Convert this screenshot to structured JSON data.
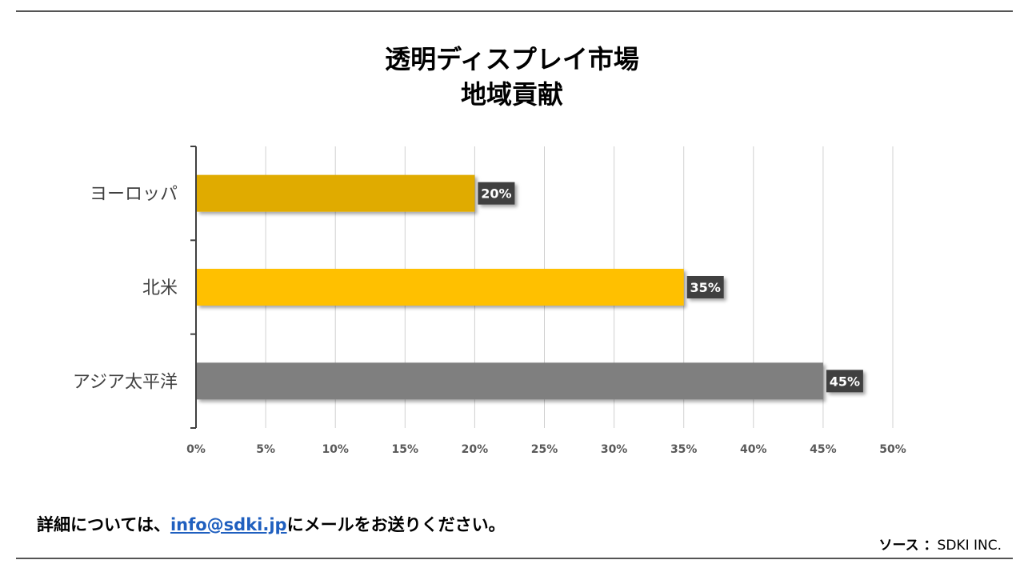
{
  "chart_data": {
    "type": "bar",
    "orientation": "horizontal",
    "title_line1": "透明ディスプレイ市場",
    "title_line2": "地域貢献",
    "categories": [
      "ヨーロッパ",
      "北米",
      "アジア太平洋"
    ],
    "values": [
      20,
      35,
      45
    ],
    "value_labels": [
      "20%",
      "35%",
      "45%"
    ],
    "colors": [
      "#e0ab00",
      "#ffc000",
      "#7f7f7f"
    ],
    "xlim": [
      0,
      50
    ],
    "xticks": [
      0,
      5,
      10,
      15,
      20,
      25,
      30,
      35,
      40,
      45,
      50
    ],
    "xtick_labels": [
      "0%",
      "5%",
      "10%",
      "15%",
      "20%",
      "25%",
      "30%",
      "35%",
      "40%",
      "45%",
      "50%"
    ],
    "grid": true,
    "legend": "none"
  },
  "footer": {
    "prefix": "詳細については、",
    "email": "info@sdki.jp",
    "suffix": "にメールをお送りください。"
  },
  "source": {
    "label": "ソース ：",
    "value": "SDKI INC."
  }
}
